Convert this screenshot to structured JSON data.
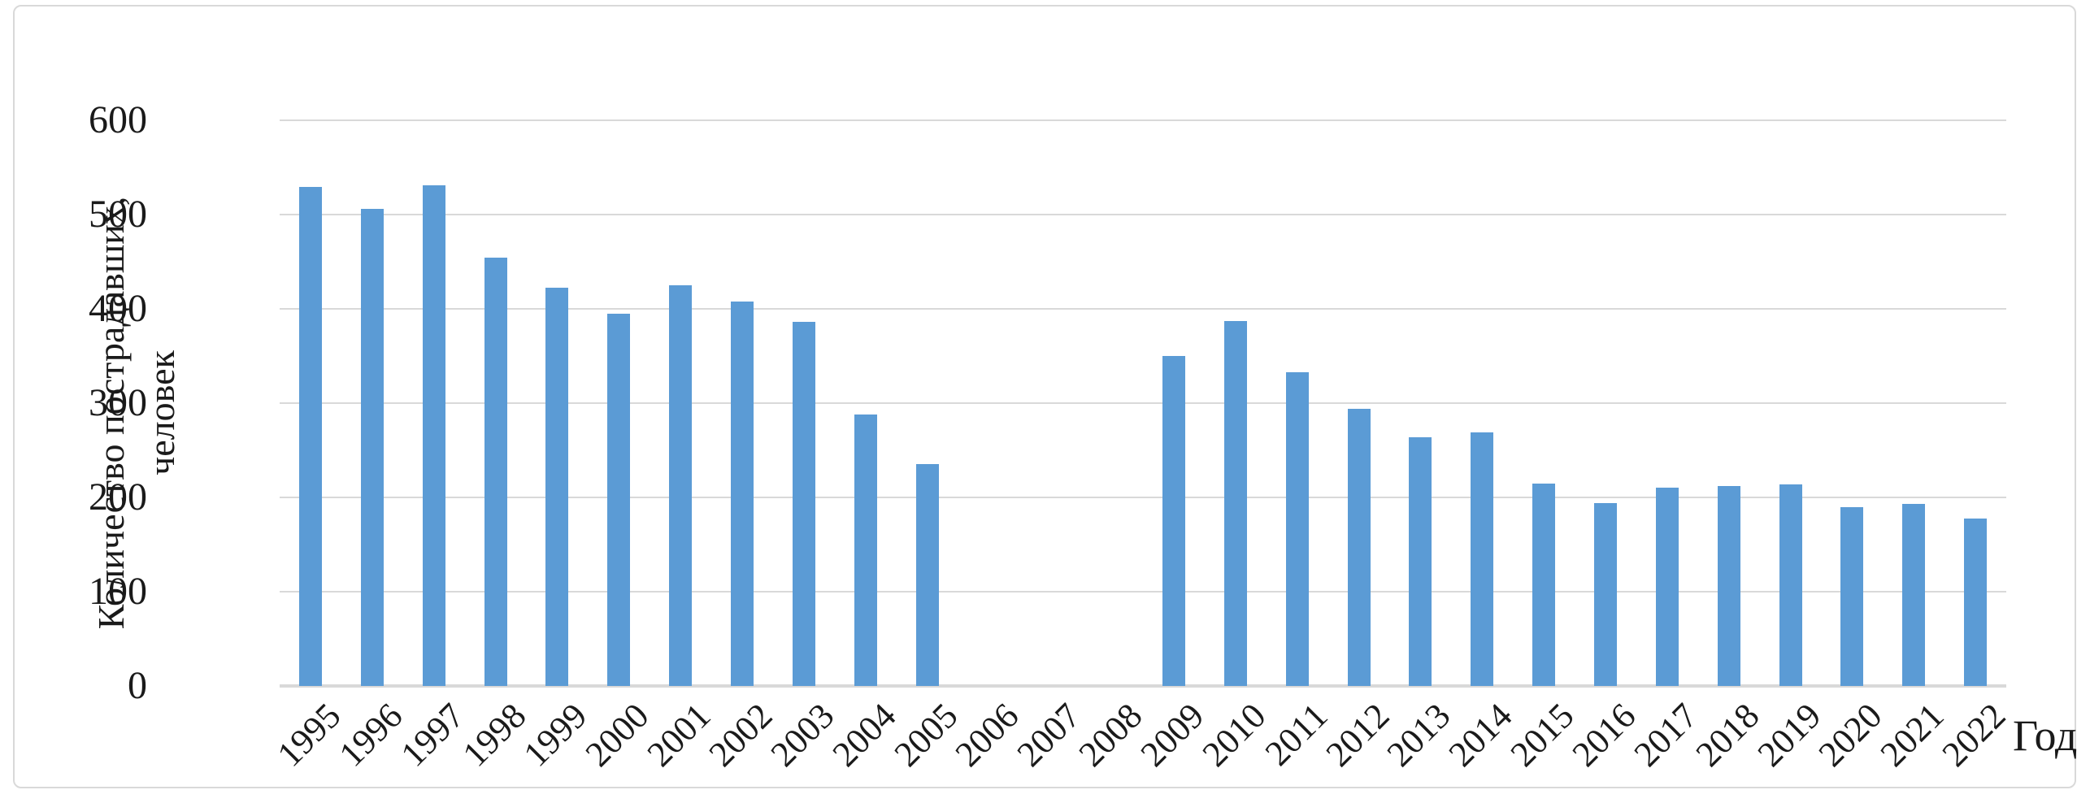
{
  "chart_data": {
    "type": "bar",
    "title": "",
    "categories": [
      "1995",
      "1996",
      "1997",
      "1998",
      "1999",
      "2000",
      "2001",
      "2002",
      "2003",
      "2004",
      "2005",
      "2006",
      "2007",
      "2008",
      "2009",
      "2010",
      "2011",
      "2012",
      "2013",
      "2014",
      "2015",
      "2016",
      "2017",
      "2018",
      "2019",
      "2020",
      "2021",
      "2022"
    ],
    "values": [
      529,
      506,
      531,
      454,
      422,
      395,
      425,
      408,
      386,
      288,
      235,
      0,
      0,
      0,
      350,
      387,
      333,
      294,
      264,
      269,
      215,
      194,
      210,
      212,
      214,
      190,
      193,
      178
    ],
    "ylabel_line1": "Количество пострадавших,",
    "ylabel_line2": "человек",
    "xlabel": "Год",
    "ylim": [
      0,
      600
    ],
    "yticks": [
      0,
      100,
      200,
      300,
      400,
      500,
      600
    ],
    "grid": true,
    "legend_position": "none",
    "colors": {
      "bar": "#5B9BD5",
      "gridline": "#D9D9D9",
      "axis_text": "#1A1A1A",
      "frame_border": "#D9D9D9",
      "background": "#FFFFFF"
    }
  }
}
